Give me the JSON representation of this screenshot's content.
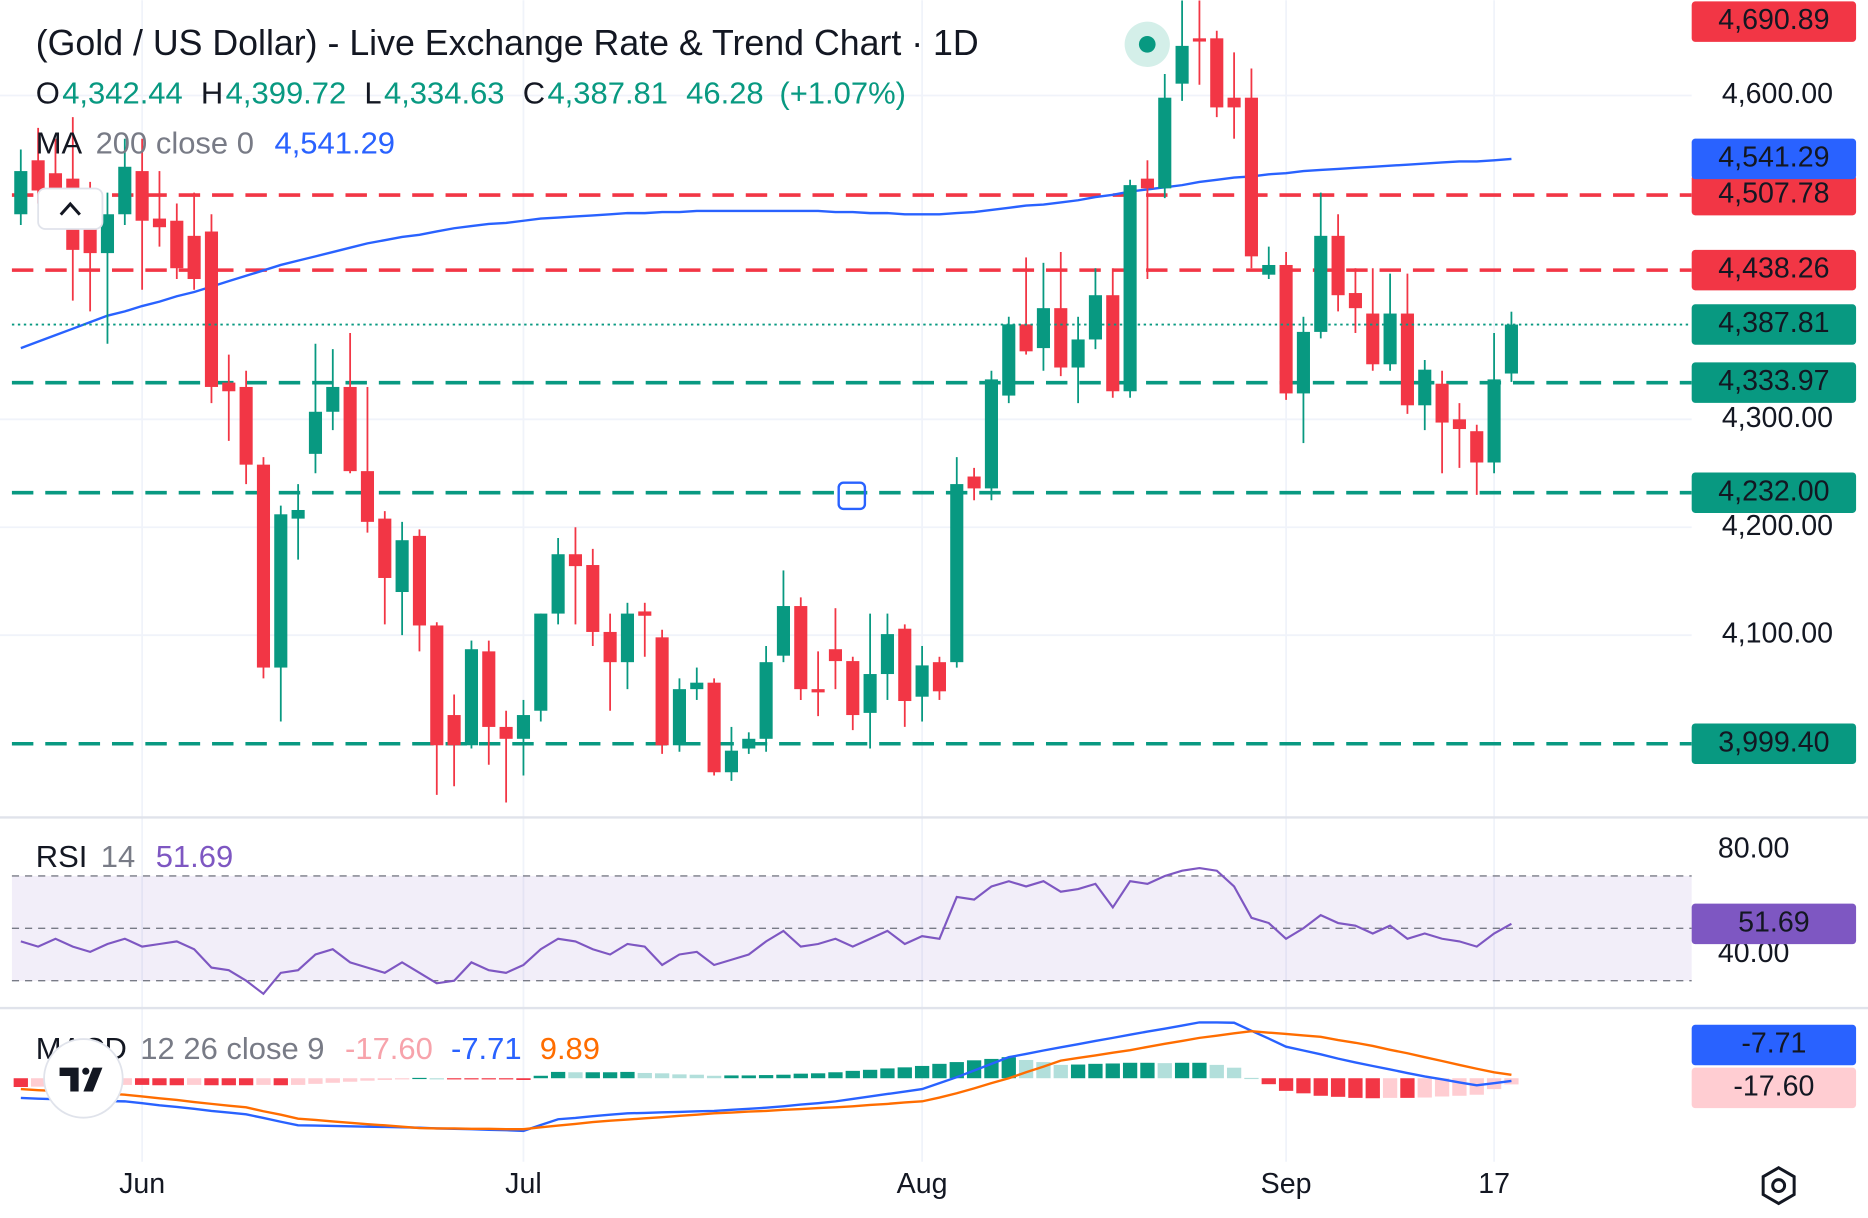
{
  "header": {
    "title": "(Gold / US Dollar) - Live Exchange Rate & Trend Chart · 1D"
  },
  "chart_data": {
    "type": "candlestick",
    "legend": {
      "open_label": "O",
      "open": "4,342.44",
      "high_label": "H",
      "high": "4,399.72",
      "low_label": "L",
      "low": "4,334.63",
      "close_label": "C",
      "close": "4,387.81",
      "change": "46.28",
      "change_pct": "(+1.07%)"
    },
    "colors": {
      "up": "#089981",
      "down": "#f23645"
    },
    "xlim": [
      -1.2,
      96.4
    ],
    "xticks": [
      {
        "value": 7,
        "label": "Jun"
      },
      {
        "value": 29,
        "label": "Jul"
      },
      {
        "value": 52,
        "label": "Aug"
      },
      {
        "value": 73,
        "label": "Sep"
      },
      {
        "value": 85,
        "label": "17"
      }
    ],
    "ylim": [
      3932.2,
      4688.3
    ],
    "yticks": [
      {
        "value": 4100,
        "label": "4,100.00"
      },
      {
        "value": 4200,
        "label": "4,200.00"
      },
      {
        "value": 4300,
        "label": "4,300.00"
      },
      {
        "value": 4600,
        "label": "4,600.00"
      }
    ],
    "grid": true,
    "series": {
      "open": [
        4490,
        4540,
        4528,
        4523,
        4484,
        4454,
        4490,
        4530,
        4486,
        4484,
        4470,
        4474,
        4334,
        4330,
        4258,
        4070,
        4208,
        4268,
        4307,
        4330,
        4252,
        4208,
        4140,
        4192,
        4109,
        4026,
        3998,
        4085,
        4015,
        4004,
        4030,
        4120,
        4175,
        4165,
        4103,
        4075,
        4122,
        4098,
        3998,
        4050,
        4056,
        3973,
        3995,
        4004,
        4081,
        4127,
        4050,
        4087,
        4076,
        4028,
        4064,
        4106,
        4043,
        4075,
        4075,
        4247,
        4236,
        4322,
        4388,
        4366,
        4403,
        4348,
        4374,
        4415,
        4326,
        4523,
        4514,
        4611,
        4653,
        4653,
        4598,
        4598,
        4434,
        4443,
        4324,
        4381,
        4470,
        4417,
        4398,
        4351,
        4398,
        4313,
        4333,
        4300,
        4289,
        4260,
        4342.44
      ],
      "high": [
        4550,
        4570,
        4560,
        4580,
        4520,
        4510,
        4560,
        4560,
        4530,
        4500,
        4510,
        4490,
        4360,
        4345,
        4265,
        4220,
        4240,
        4370,
        4365,
        4380,
        4330,
        4215,
        4205,
        4198,
        4112,
        4045,
        4095,
        4095,
        4030,
        4040,
        4120,
        4190,
        4200,
        4180,
        4120,
        4130,
        4130,
        4105,
        4060,
        4070,
        4060,
        4015,
        4010,
        4090,
        4160,
        4135,
        4085,
        4125,
        4080,
        4120,
        4120,
        4110,
        4090,
        4080,
        4265,
        4255,
        4345,
        4395,
        4450,
        4445,
        4455,
        4395,
        4440,
        4440,
        4522,
        4540,
        4620,
        4688,
        4688,
        4660,
        4640,
        4625,
        4460,
        4455,
        4395,
        4510,
        4490,
        4440,
        4440,
        4435,
        4435,
        4355,
        4345,
        4315,
        4295,
        4380,
        4399.72
      ],
      "low": [
        4480,
        4500,
        4490,
        4410,
        4400,
        4370,
        4480,
        4420,
        4460,
        4430,
        4420,
        4315,
        4280,
        4240,
        4060,
        4020,
        4170,
        4250,
        4290,
        4250,
        4195,
        4110,
        4100,
        4085,
        3952,
        3960,
        3995,
        3980,
        3945,
        3970,
        4020,
        4110,
        4110,
        4090,
        4030,
        4050,
        4080,
        3990,
        3992,
        4040,
        3970,
        3965,
        3990,
        3992,
        4075,
        4040,
        4025,
        4050,
        4012,
        3995,
        4040,
        4015,
        4020,
        4040,
        4070,
        4225,
        4225,
        4315,
        4360,
        4345,
        4340,
        4315,
        4365,
        4320,
        4320,
        4430,
        4505,
        4595,
        4610,
        4580,
        4560,
        4440,
        4430,
        4318,
        4278,
        4375,
        4400,
        4380,
        4345,
        4345,
        4305,
        4290,
        4250,
        4255,
        4230,
        4250,
        4334.63
      ],
      "close": [
        4530,
        4512,
        4506,
        4457,
        4454,
        4490,
        4534,
        4484,
        4478,
        4440,
        4430,
        4330,
        4326,
        4258,
        4070,
        4212,
        4216,
        4307,
        4330,
        4252,
        4205,
        4153,
        4188,
        4109,
        3998,
        3998,
        4087,
        4015,
        4004,
        4026,
        4120,
        4175,
        4164,
        4103,
        4075,
        4120,
        4118,
        3998,
        4050,
        4056,
        3973,
        3993,
        4004,
        4075,
        4127,
        4050,
        4047,
        4076,
        4026,
        4064,
        4101,
        4039,
        4072,
        4048,
        4240,
        4236,
        4337,
        4388,
        4363,
        4403,
        4348,
        4374,
        4415,
        4326,
        4517,
        4514,
        4598,
        4646,
        4650,
        4589,
        4589,
        4451,
        4443,
        4324,
        4381,
        4470,
        4415,
        4403,
        4351,
        4398,
        4313,
        4346,
        4297,
        4291,
        4260,
        4337,
        4387.81
      ]
    },
    "last_price": {
      "label": "4,387.81",
      "color": "#089981"
    },
    "ma": {
      "name": "MA",
      "params": "200 close 0",
      "value_label": "4,541.29",
      "color": "#2962ff",
      "values": [
        4366,
        4372,
        4378,
        4384,
        4390,
        4396,
        4400,
        4405,
        4409,
        4414,
        4418,
        4423,
        4428,
        4433,
        4438,
        4443,
        4447,
        4451,
        4455,
        4459,
        4463,
        4466,
        4469,
        4471,
        4474,
        4477,
        4479,
        4481,
        4482,
        4484,
        4486,
        4487,
        4488,
        4489,
        4490,
        4491,
        4491,
        4492,
        4492,
        4493,
        4493,
        4493,
        4493,
        4493,
        4493,
        4493,
        4493,
        4492,
        4492,
        4491,
        4491,
        4490,
        4490,
        4490,
        4491,
        4492,
        4494,
        4496,
        4498,
        4499,
        4501,
        4503,
        4506,
        4508,
        4511,
        4513,
        4515,
        4517,
        4520,
        4522,
        4524,
        4525,
        4527,
        4528,
        4530,
        4531,
        4532,
        4533,
        4534,
        4535,
        4536,
        4537,
        4538,
        4539,
        4539,
        4540,
        4541.29
      ]
    },
    "levels": [
      {
        "value": 4690.89,
        "label": "4,690.89",
        "color": "#f23645"
      },
      {
        "value": 4507.78,
        "label": "4,507.78",
        "color": "#f23645"
      },
      {
        "value": 4438.26,
        "label": "4,438.26",
        "color": "#f23645"
      },
      {
        "value": 4333.97,
        "label": "4,333.97",
        "color": "#089981"
      },
      {
        "value": 4232.0,
        "label": "4,232.00",
        "color": "#089981"
      },
      {
        "value": 3999.4,
        "label": "3,999.40",
        "color": "#089981"
      }
    ],
    "rsi": {
      "name": "RSI",
      "params": 14,
      "value_label": "51.69",
      "color": "#7e57c2",
      "ylim": [
        20,
        90.5
      ],
      "yticks": [
        {
          "value": 80,
          "label": "80.00"
        },
        {
          "value": 40,
          "label": "40.00"
        }
      ],
      "bands": [
        70,
        30
      ],
      "midline": 50,
      "values": [
        45,
        43,
        46,
        43,
        41,
        44,
        46,
        43,
        44,
        45,
        42,
        35,
        34,
        30,
        25,
        33,
        34,
        40,
        42,
        37,
        35,
        33,
        37,
        33,
        29,
        30,
        37,
        34,
        33,
        36,
        42,
        46,
        45,
        42,
        40,
        44,
        43,
        36,
        40,
        41,
        36,
        38,
        40,
        45,
        49,
        43,
        44,
        46,
        43,
        46,
        49,
        44,
        47,
        46,
        62,
        61,
        66,
        68,
        66,
        68,
        64,
        65,
        67,
        58,
        68,
        67,
        70,
        72,
        73,
        72,
        66,
        54,
        52,
        46,
        50,
        55,
        52,
        51,
        48,
        51,
        46,
        48,
        46,
        45,
        43,
        48,
        51.69
      ]
    },
    "macd": {
      "name": "MACD",
      "params": "12 26 close 9",
      "ylim": [
        -238,
        193
      ],
      "histogram": {
        "value_label": "-17.60",
        "colors": {
          "grow_up": "#089981",
          "fall_up": "#b2dfdb",
          "fall_down": "#f23645",
          "rise_down": "#ffcdd2"
        },
        "values": [
          -25,
          -24,
          -24,
          -22,
          -21,
          -21,
          -19,
          -19,
          -20,
          -20,
          -19,
          -20,
          -20,
          -20,
          -19,
          -20,
          -19,
          -16,
          -13,
          -10,
          -7,
          -5,
          -2,
          1,
          0,
          -1,
          -1,
          -3,
          -3,
          -5,
          7,
          18,
          17,
          17,
          17,
          18,
          15,
          14,
          11,
          10,
          7,
          8,
          8,
          9,
          10,
          13,
          14,
          17,
          21,
          24,
          28,
          31,
          35,
          41,
          46,
          51,
          55,
          60,
          52,
          46,
          38,
          39,
          41,
          42,
          44,
          44,
          43,
          44,
          44,
          38,
          30,
          1,
          -17,
          -36,
          -43,
          -50,
          -53,
          -56,
          -57,
          -56,
          -56,
          -55,
          -52,
          -50,
          -47,
          -31,
          -17.6
        ]
      },
      "macd": {
        "value_label": "-7.71",
        "color": "#2962ff",
        "values": [
          -56,
          -58,
          -60,
          -61,
          -63,
          -65,
          -66,
          -71,
          -77,
          -82,
          -87,
          -93,
          -98,
          -103,
          -113,
          -124,
          -134,
          -135,
          -136,
          -137,
          -138,
          -139,
          -140,
          -141,
          -143,
          -144,
          -145,
          -147,
          -148,
          -150,
          -133,
          -117,
          -113,
          -108,
          -104,
          -100,
          -99,
          -97,
          -96,
          -94,
          -93,
          -90,
          -87,
          -84,
          -80,
          -75,
          -71,
          -66,
          -59,
          -52,
          -45,
          -38,
          -31,
          -14,
          3,
          22,
          41,
          60,
          69,
          79,
          88,
          97,
          106,
          115,
          124,
          133,
          141,
          150,
          159,
          159,
          158,
          135,
          113,
          90,
          79,
          68,
          56,
          45,
          35,
          25,
          15,
          5,
          -3,
          -12,
          -20,
          -14,
          -7.71
        ]
      },
      "signal": {
        "value_label": "9.89",
        "color": "#ff6d00",
        "values": [
          -31,
          -34,
          -36,
          -39,
          -42,
          -44,
          -47,
          -52,
          -57,
          -62,
          -68,
          -73,
          -78,
          -83,
          -94,
          -104,
          -115,
          -119,
          -123,
          -127,
          -131,
          -134,
          -138,
          -142,
          -143,
          -143,
          -144,
          -144,
          -145,
          -145,
          -140,
          -135,
          -130,
          -125,
          -121,
          -118,
          -114,
          -111,
          -107,
          -104,
          -100,
          -98,
          -95,
          -93,
          -90,
          -88,
          -85,
          -83,
          -80,
          -76,
          -73,
          -69,
          -66,
          -55,
          -43,
          -29,
          -14,
          0,
          17,
          33,
          50,
          58,
          65,
          73,
          80,
          89,
          98,
          106,
          115,
          121,
          128,
          134,
          130,
          126,
          122,
          118,
          109,
          101,
          92,
          81,
          71,
          60,
          49,
          38,
          27,
          17,
          9.89
        ]
      }
    }
  }
}
